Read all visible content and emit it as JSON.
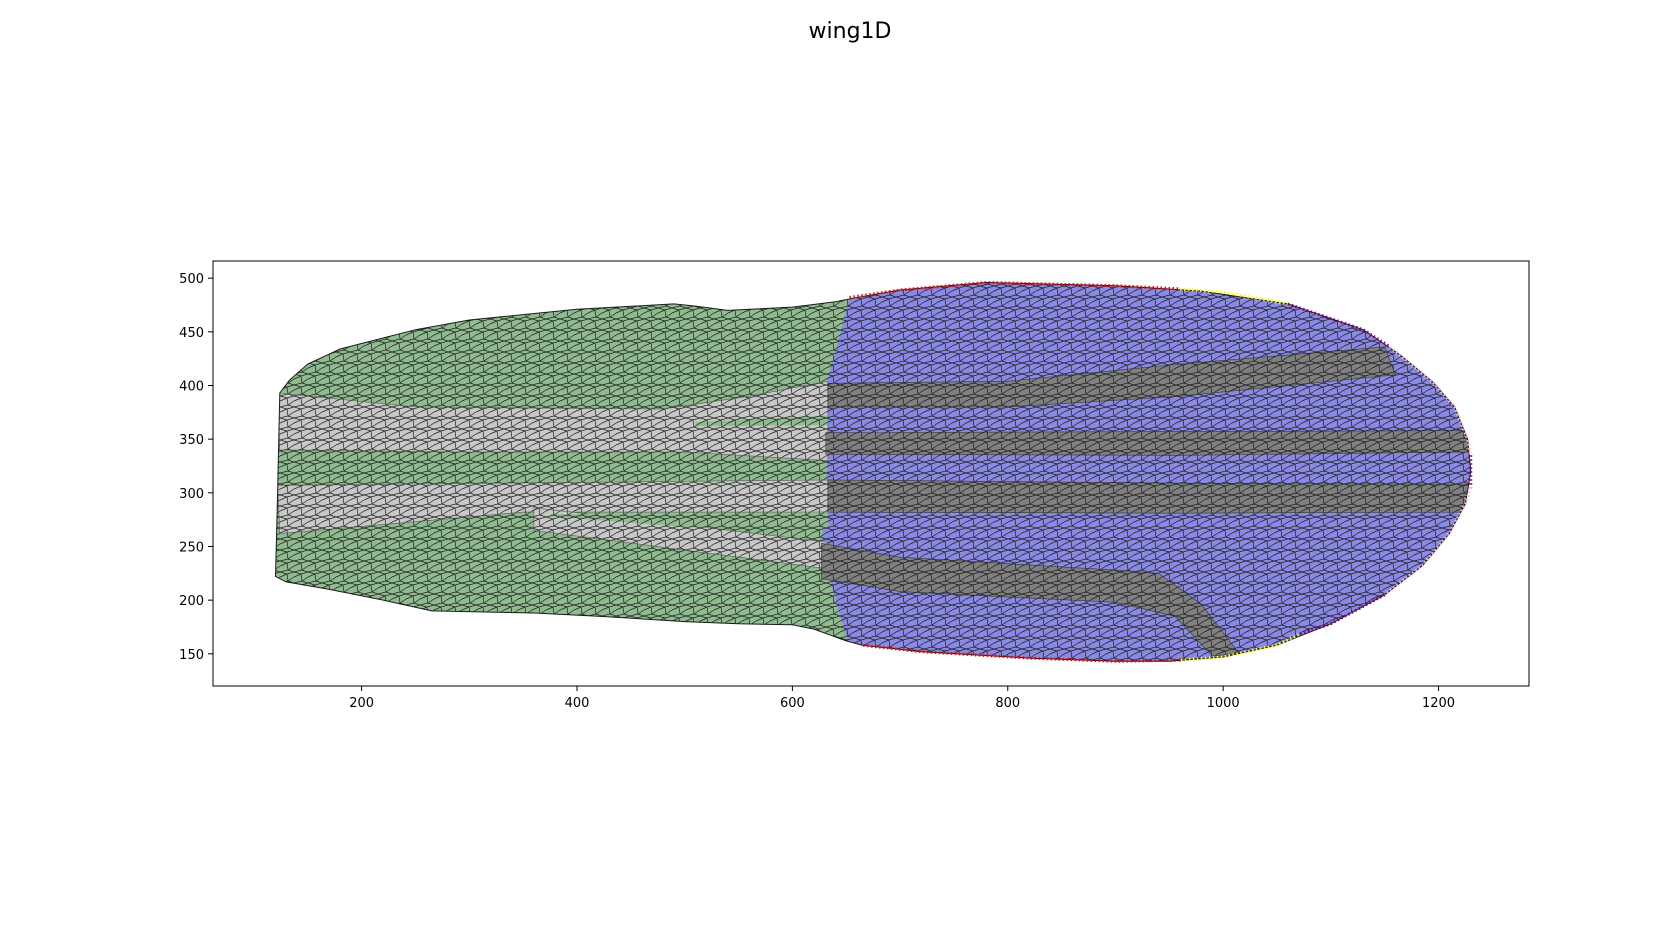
{
  "chart_data": {
    "type": "scatter",
    "title": "wing1D",
    "xlabel": "",
    "ylabel": "",
    "xlim": [
      62,
      1284
    ],
    "ylim": [
      120,
      516
    ],
    "x_ticks": [
      200,
      400,
      600,
      800,
      1000,
      1200
    ],
    "y_ticks": [
      150,
      200,
      250,
      300,
      350,
      400,
      450,
      500
    ],
    "grid": false,
    "legend": false,
    "description_note": "",
    "colors": {
      "green_region": "#8fbc8f",
      "light_gray_band": "#c8c8c8",
      "blue_region": "#8a8ae6",
      "dark_gray_band": "#808080",
      "cell_edges": "#1a1a1a",
      "boundary_red": "#ff0000",
      "boundary_yellow": "#ffff00",
      "boundary_purple": "#800080",
      "boundary_pink": "#ffc0cb"
    },
    "regions": {
      "outline": [
        [
          120,
          222
        ],
        [
          122,
          300
        ],
        [
          124,
          393
        ],
        [
          133,
          405
        ],
        [
          150,
          420
        ],
        [
          180,
          434
        ],
        [
          250,
          452
        ],
        [
          300,
          461
        ],
        [
          400,
          471
        ],
        [
          490,
          476
        ],
        [
          510,
          474
        ],
        [
          540,
          470
        ],
        [
          600,
          473
        ],
        [
          640,
          478
        ],
        [
          660,
          482
        ],
        [
          700,
          489
        ],
        [
          780,
          496
        ],
        [
          900,
          493
        ],
        [
          980,
          488
        ],
        [
          1060,
          476
        ],
        [
          1130,
          452
        ],
        [
          1165,
          428
        ],
        [
          1195,
          403
        ],
        [
          1215,
          380
        ],
        [
          1227,
          350
        ],
        [
          1230,
          320
        ],
        [
          1225,
          290
        ],
        [
          1210,
          262
        ],
        [
          1185,
          232
        ],
        [
          1150,
          205
        ],
        [
          1100,
          178
        ],
        [
          1050,
          158
        ],
        [
          1000,
          147
        ],
        [
          950,
          143
        ],
        [
          900,
          143
        ],
        [
          820,
          146
        ],
        [
          720,
          152
        ],
        [
          665,
          158
        ],
        [
          650,
          162
        ],
        [
          620,
          173
        ],
        [
          600,
          177
        ],
        [
          550,
          178
        ],
        [
          500,
          180
        ],
        [
          420,
          185
        ],
        [
          360,
          188
        ],
        [
          265,
          190
        ],
        [
          220,
          200
        ],
        [
          170,
          210
        ],
        [
          130,
          217
        ]
      ],
      "green_blue_boundary": [
        [
          651,
          162
        ],
        [
          640,
          200
        ],
        [
          627,
          250
        ],
        [
          631,
          300
        ],
        [
          633,
          350
        ],
        [
          631,
          400
        ],
        [
          645,
          450
        ],
        [
          653,
          482
        ]
      ],
      "light_gray_bands": [
        [
          [
            122,
            393
          ],
          [
            250,
            380
          ],
          [
            480,
            378
          ],
          [
            560,
            390
          ],
          [
            633,
            404
          ],
          [
            633,
            330
          ],
          [
            500,
            338
          ],
          [
            300,
            338
          ],
          [
            124,
            340
          ]
        ],
        [
          [
            122,
            307
          ],
          [
            633,
            312
          ],
          [
            633,
            282
          ],
          [
            500,
            282
          ],
          [
            350,
            282
          ],
          [
            124,
            262
          ]
        ],
        [
          [
            360,
            286
          ],
          [
            500,
            270
          ],
          [
            633,
            254
          ],
          [
            627,
            230
          ],
          [
            520,
            244
          ],
          [
            360,
            265
          ]
        ]
      ],
      "green_islands": [
        [
          [
            510,
            362
          ],
          [
            633,
            363
          ],
          [
            633,
            372
          ],
          [
            510,
            366
          ]
        ],
        [
          [
            375,
            280
          ],
          [
            633,
            282
          ],
          [
            633,
            266
          ],
          [
            500,
            268
          ],
          [
            375,
            278
          ]
        ]
      ],
      "dark_gray_bands": [
        [
          [
            633,
            402
          ],
          [
            800,
            404
          ],
          [
            960,
            420
          ],
          [
            1150,
            436
          ],
          [
            1160,
            410
          ],
          [
            960,
            390
          ],
          [
            800,
            380
          ],
          [
            633,
            380
          ]
        ],
        [
          [
            631,
            356
          ],
          [
            960,
            357
          ],
          [
            1226,
            358
          ],
          [
            1228,
            338
          ],
          [
            960,
            335
          ],
          [
            631,
            336
          ]
        ],
        [
          [
            633,
            312
          ],
          [
            960,
            309
          ],
          [
            1230,
            308
          ],
          [
            1230,
            282
          ],
          [
            960,
            281
          ],
          [
            633,
            282
          ]
        ],
        [
          [
            627,
            253
          ],
          [
            700,
            240
          ],
          [
            900,
            228
          ],
          [
            940,
            225
          ],
          [
            980,
            196
          ],
          [
            1015,
            150
          ],
          [
            990,
            148
          ],
          [
            955,
            185
          ],
          [
            900,
            198
          ],
          [
            700,
            208
          ],
          [
            627,
            220
          ]
        ]
      ],
      "boundary_segments": [
        {
          "color": "red",
          "points": [
            [
              653,
              482
            ],
            [
              700,
              489
            ],
            [
              780,
              496
            ],
            [
              900,
              493
            ],
            [
              960,
              490
            ]
          ]
        },
        {
          "color": "yellow",
          "points": [
            [
              960,
              490
            ],
            [
              1000,
              487
            ],
            [
              1060,
              476
            ]
          ]
        },
        {
          "color": "purple",
          "points": [
            [
              1060,
              476
            ],
            [
              1130,
              452
            ],
            [
              1155,
              436
            ]
          ]
        },
        {
          "color": "pink",
          "points": [
            [
              1155,
              436
            ],
            [
              1195,
              403
            ],
            [
              1215,
              380
            ],
            [
              1227,
              350
            ],
            [
              1230,
              335
            ]
          ]
        },
        {
          "color": "purple",
          "points": [
            [
              1230,
              335
            ],
            [
              1230,
              305
            ]
          ]
        },
        {
          "color": "pink",
          "points": [
            [
              1230,
              305
            ],
            [
              1225,
              290
            ],
            [
              1210,
              262
            ],
            [
              1185,
              232
            ],
            [
              1150,
              205
            ]
          ]
        },
        {
          "color": "purple",
          "points": [
            [
              1150,
              205
            ],
            [
              1100,
              178
            ],
            [
              1070,
              168
            ]
          ]
        },
        {
          "color": "yellow",
          "points": [
            [
              1070,
              168
            ],
            [
              1050,
              158
            ],
            [
              1000,
              147
            ],
            [
              960,
              144
            ]
          ]
        },
        {
          "color": "red",
          "points": [
            [
              960,
              144
            ],
            [
              900,
              143
            ],
            [
              820,
              146
            ],
            [
              720,
              152
            ],
            [
              665,
              158
            ]
          ]
        }
      ]
    }
  }
}
